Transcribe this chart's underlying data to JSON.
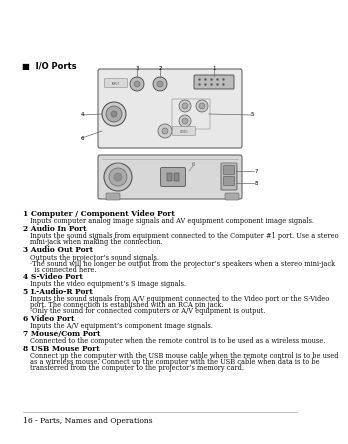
{
  "bg_color": "#ffffff",
  "title_bullet": "■  I/O Ports",
  "title_fontsize": 6.0,
  "sections": [
    {
      "num": "1",
      "title": "Computer / Component Video Port",
      "body": [
        "Inputs computer analog image signals and AV equipment component image signals."
      ]
    },
    {
      "num": "2",
      "title": "Audio In Port",
      "body": [
        "Inputs the sound signals from equipment connected to the Computer #1 port. Use a stereo",
        "mini-jack when making the connection."
      ]
    },
    {
      "num": "3",
      "title": "Audio Out Port",
      "body": [
        "Outputs the projector’s sound signals.",
        "·The sound will no longer be output from the projector’s speakers when a stereo mini-jack",
        "  is connected here."
      ]
    },
    {
      "num": "4",
      "title": "S-Video Port",
      "body": [
        "Inputs the video equipment’s S image signals."
      ]
    },
    {
      "num": "5",
      "title": "L-Audio-R Port",
      "body": [
        "Inputs the sound signals from A/V equipment connected to the Video port or the S-Video",
        "port. The connection is established with an RCA pin jack.",
        "·Only the sound for connected computers or A/V equipment is output."
      ]
    },
    {
      "num": "6",
      "title": "Video Port",
      "body": [
        "Inputs the A/V equipment’s component image signals."
      ]
    },
    {
      "num": "7",
      "title": "Mouse/Com Port",
      "body": [
        "Connected to the computer when the remote control is to be used as a wireless mouse."
      ]
    },
    {
      "num": "8",
      "title": "USB Mouse Port",
      "body": [
        "Connect up the computer with the USB mouse cable when the remote control is to be used",
        "as a wireless mouse. Connect up the computer with the USB cable when data is to be",
        "transferred from the computer to the projector’s memory card."
      ]
    }
  ],
  "footer": "16 - Parts, Names and Operations",
  "panel_color": "#e8e8e8",
  "panel_edge": "#666666",
  "port_fill": "#cccccc",
  "port_edge": "#555555"
}
